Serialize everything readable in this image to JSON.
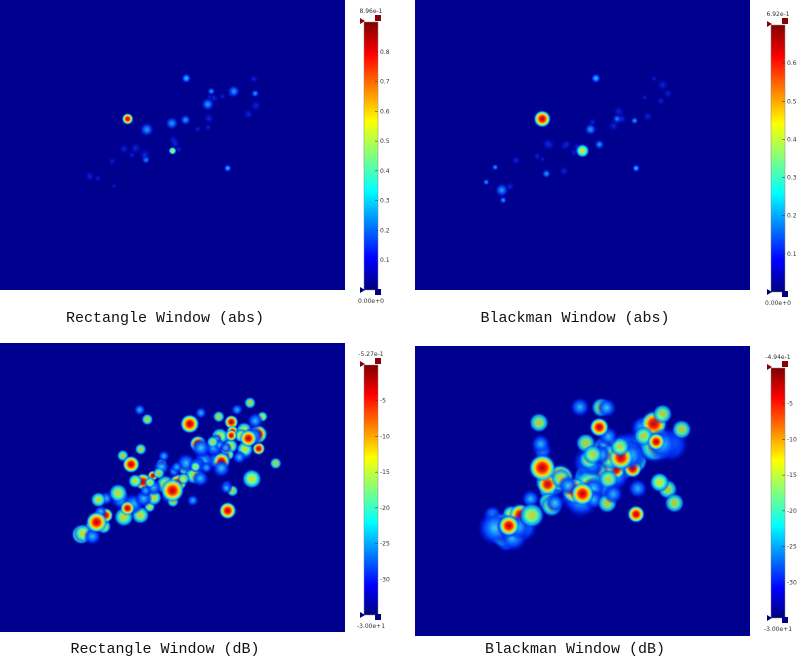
{
  "panels": [
    {
      "caption": "Rectangle Window (abs)",
      "colorbar": {
        "max_label": "8.96e-1",
        "min_label": "0.00e+0",
        "tick_labels": [
          "0.8",
          "0.7",
          "0.6",
          "0.5",
          "0.4",
          "0.3",
          "0.2",
          "0.1"
        ]
      }
    },
    {
      "caption": "Blackman Window (abs)",
      "colorbar": {
        "max_label": "6.92e-1",
        "min_label": "0.00e+0",
        "tick_labels": [
          "0.6",
          "0.5",
          "0.4",
          "0.3",
          "0.2",
          "0.1"
        ]
      }
    },
    {
      "caption": "Rectangle Window (dB)",
      "colorbar": {
        "max_label": "-5.27e-1",
        "min_label": "-3.00e+1",
        "tick_labels": [
          "-5",
          "-10",
          "-15",
          "-20",
          "-25",
          "-30"
        ]
      }
    },
    {
      "caption": "Blackman Window (dB)",
      "colorbar": {
        "max_label": "-4.94e-1",
        "min_label": "-3.00e+1",
        "tick_labels": [
          "-5",
          "-10",
          "-15",
          "-20",
          "-25",
          "-30"
        ]
      }
    }
  ]
}
